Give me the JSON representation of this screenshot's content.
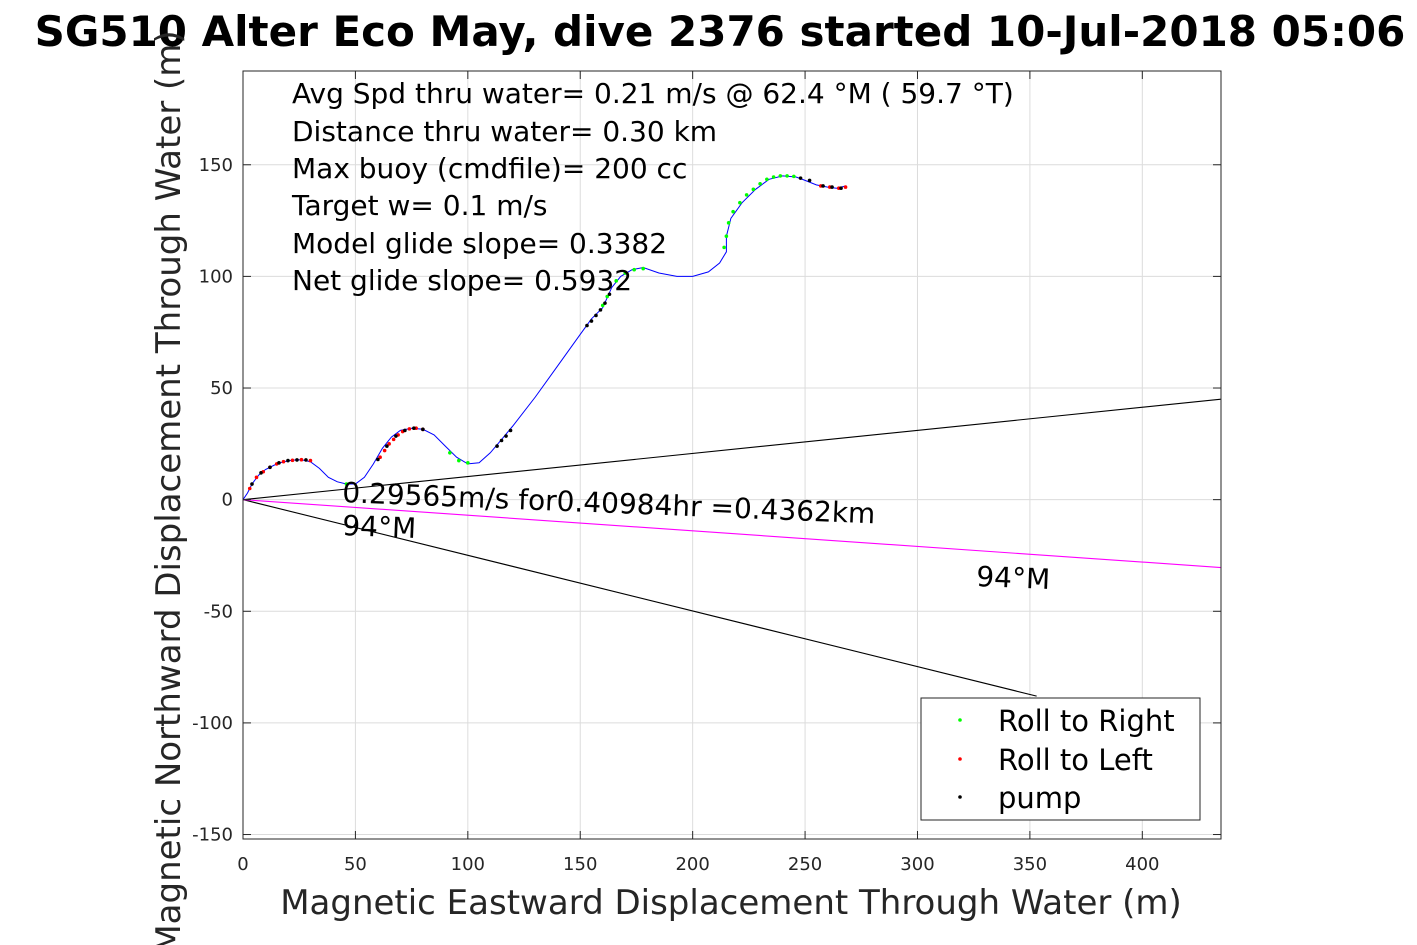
{
  "chart_data": {
    "type": "scatter",
    "title": "SG510 Alter Eco May, dive 2376 started 10-Jul-2018 05:06",
    "xlabel": "Magnetic Eastward Displacement Through Water (m)",
    "ylabel": "Magnetic Northward Displacement Through Water (m)",
    "xlim": [
      0,
      435
    ],
    "ylim": [
      -152,
      192
    ],
    "xticks": [
      0,
      50,
      100,
      150,
      200,
      250,
      300,
      350,
      400
    ],
    "yticks": [
      -150,
      -100,
      -50,
      0,
      50,
      100,
      150
    ],
    "grid": true,
    "legend_position": "bottom-right",
    "annotations": [
      "Avg Spd thru water=  0.21 m/s @  62.4 °M ( 59.7 °T)",
      "Distance thru water=  0.30 km",
      "Max buoy (cmdfile)= 200 cc",
      "Target w= 0.1 m/s",
      "Model glide slope= 0.3382",
      "Net glide slope= 0.5932"
    ],
    "current_label": {
      "line1": "0.29565m/s for0.40984hr =0.4362km",
      "line2": "94°M"
    },
    "heading_label": "94°M",
    "reference_lines": [
      {
        "name": "cone-upper",
        "color": "#000000",
        "from": [
          0,
          0
        ],
        "to": [
          435,
          45
        ]
      },
      {
        "name": "cone-lower",
        "color": "#000000",
        "from": [
          0,
          0
        ],
        "to": [
          353,
          -88
        ]
      },
      {
        "name": "current-vector",
        "color": "#ff00ff",
        "from": [
          0,
          0
        ],
        "to": [
          435,
          -30.4
        ]
      }
    ],
    "track": {
      "color": "#0000ff",
      "points": [
        [
          0,
          0
        ],
        [
          2,
          3
        ],
        [
          4,
          7
        ],
        [
          7,
          11
        ],
        [
          10,
          13.5
        ],
        [
          14,
          15.5
        ],
        [
          18,
          17
        ],
        [
          22,
          17.7
        ],
        [
          26,
          17.9
        ],
        [
          30,
          17
        ],
        [
          34,
          14
        ],
        [
          38,
          10
        ],
        [
          42,
          8
        ],
        [
          46,
          7
        ],
        [
          50,
          7
        ],
        [
          54,
          10
        ],
        [
          58,
          16
        ],
        [
          62,
          23
        ],
        [
          66,
          28
        ],
        [
          70,
          31
        ],
        [
          75,
          32
        ],
        [
          80,
          31.5
        ],
        [
          85,
          29
        ],
        [
          90,
          24
        ],
        [
          95,
          19
        ],
        [
          100,
          16
        ],
        [
          105,
          16.5
        ],
        [
          110,
          21
        ],
        [
          115,
          27
        ],
        [
          120,
          33
        ],
        [
          130,
          46
        ],
        [
          140,
          60
        ],
        [
          150,
          74
        ],
        [
          155,
          81
        ],
        [
          160,
          86
        ],
        [
          164,
          95
        ],
        [
          168,
          100
        ],
        [
          173,
          103
        ],
        [
          178,
          104
        ],
        [
          185,
          101.5
        ],
        [
          193,
          100
        ],
        [
          200,
          100
        ],
        [
          207,
          102
        ],
        [
          212,
          106
        ],
        [
          215,
          111
        ],
        [
          215,
          118
        ],
        [
          217,
          126
        ],
        [
          222,
          133
        ],
        [
          228,
          139
        ],
        [
          234,
          143.5
        ],
        [
          240,
          145
        ],
        [
          246,
          144.5
        ],
        [
          250,
          143
        ],
        [
          255,
          141
        ],
        [
          260,
          140
        ],
        [
          264,
          139.5
        ],
        [
          268,
          140.5
        ]
      ]
    },
    "series": [
      {
        "name": "Roll to Right",
        "color": "#00ff00",
        "points": [
          [
            46,
            7
          ],
          [
            92,
            21
          ],
          [
            96,
            17.5
          ],
          [
            100,
            16.5
          ],
          [
            160,
            87
          ],
          [
            162,
            91
          ],
          [
            166,
            98
          ],
          [
            170,
            101.5
          ],
          [
            174,
            103
          ],
          [
            178,
            103.5
          ],
          [
            214,
            113
          ],
          [
            215,
            118
          ],
          [
            216,
            124
          ],
          [
            218,
            129
          ],
          [
            221,
            133
          ],
          [
            224,
            136.5
          ],
          [
            227,
            139
          ],
          [
            230,
            141.5
          ],
          [
            233,
            143.5
          ],
          [
            236,
            144.5
          ],
          [
            239,
            145
          ],
          [
            242,
            145
          ],
          [
            245,
            144.8
          ]
        ]
      },
      {
        "name": "Roll to Left",
        "color": "#ff0000",
        "points": [
          [
            3,
            5
          ],
          [
            6,
            10
          ],
          [
            9,
            12.5
          ],
          [
            12,
            14.5
          ],
          [
            15,
            16
          ],
          [
            18,
            17
          ],
          [
            22,
            17.6
          ],
          [
            26,
            17.9
          ],
          [
            30,
            17.5
          ],
          [
            61,
            19
          ],
          [
            63,
            22
          ],
          [
            65,
            25
          ],
          [
            67,
            27
          ],
          [
            69,
            29
          ],
          [
            71,
            30.5
          ],
          [
            74,
            31.7
          ],
          [
            77,
            32
          ],
          [
            80,
            31.5
          ],
          [
            257,
            140.5
          ],
          [
            261,
            140
          ],
          [
            265,
            139.5
          ],
          [
            268,
            140
          ]
        ]
      },
      {
        "name": "pump",
        "color": "#000000",
        "points": [
          [
            4,
            7
          ],
          [
            8,
            12
          ],
          [
            12,
            14.5
          ],
          [
            16,
            16.5
          ],
          [
            20,
            17.5
          ],
          [
            24,
            17.8
          ],
          [
            28,
            17.8
          ],
          [
            60,
            18
          ],
          [
            64,
            24
          ],
          [
            68,
            28.5
          ],
          [
            72,
            31
          ],
          [
            76,
            32
          ],
          [
            80,
            31.5
          ],
          [
            113,
            24
          ],
          [
            115,
            26.5
          ],
          [
            117,
            28.5
          ],
          [
            119,
            31
          ],
          [
            153,
            78
          ],
          [
            155,
            80
          ],
          [
            157,
            82.5
          ],
          [
            159,
            85
          ],
          [
            161,
            88
          ],
          [
            163,
            92
          ],
          [
            248,
            144
          ],
          [
            252,
            143
          ],
          [
            258,
            140.5
          ],
          [
            262,
            140
          ],
          [
            266,
            139.5
          ]
        ]
      }
    ]
  }
}
